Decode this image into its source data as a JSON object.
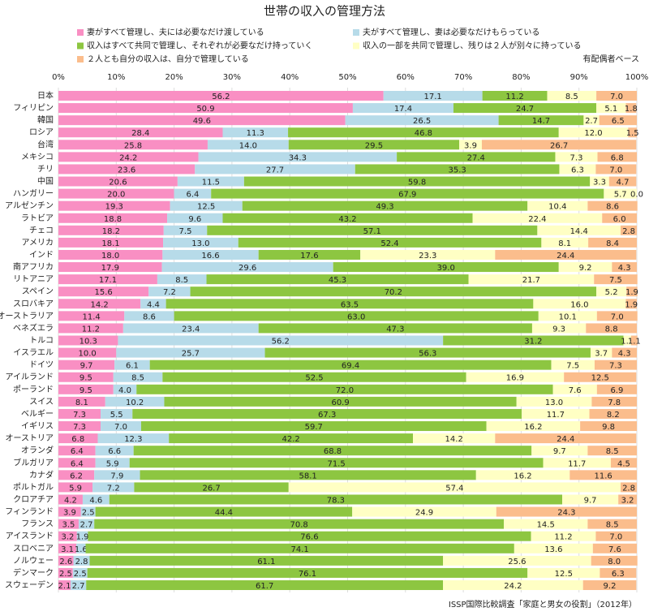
{
  "chart_data": {
    "type": "stacked-bar-horizontal",
    "title": "世帯の収入の管理方法",
    "note": "有配偶者ベース",
    "source": "ISSP国際比較調査「家庭と男女の役割」（2012年）",
    "xlim": [
      0,
      100
    ],
    "xticks": [
      {
        "value": 0,
        "label": "0%"
      },
      {
        "value": 10,
        "label": "10%"
      },
      {
        "value": 20,
        "label": "20%"
      },
      {
        "value": 30,
        "label": "30%"
      },
      {
        "value": 40,
        "label": "40%"
      },
      {
        "value": 50,
        "label": "50%"
      },
      {
        "value": 60,
        "label": "60%"
      },
      {
        "value": 70,
        "label": "70%"
      },
      {
        "value": 80,
        "label": "80%"
      },
      {
        "value": 90,
        "label": "90%"
      },
      {
        "value": 100,
        "label": "100%"
      }
    ],
    "grid": true,
    "categories": [
      "日本",
      "フィリピン",
      "韓国",
      "ロシア",
      "台湾",
      "メキシコ",
      "チリ",
      "中国",
      "ハンガリー",
      "アルゼンチン",
      "ラトビア",
      "チェコ",
      "アメリカ",
      "インド",
      "南アフリカ",
      "リトアニア",
      "スペイン",
      "スロバキア",
      "オーストラリア",
      "ベネズエラ",
      "トルコ",
      "イスラエル",
      "ドイツ",
      "アイルランド",
      "ポーランド",
      "スイス",
      "ベルギー",
      "イギリス",
      "オーストリア",
      "オランダ",
      "ブルガリア",
      "カナダ",
      "ポルトガル",
      "クロアチア",
      "フィンランド",
      "フランス",
      "アイスランド",
      "スロベニア",
      "ノルウェー",
      "デンマーク",
      "スウェーデン"
    ],
    "series": [
      {
        "name": "妻がすべて管理し、夫には必要なだけ渡している",
        "color": "#f98fc3",
        "values": [
          56.2,
          50.9,
          49.6,
          28.4,
          25.8,
          24.2,
          23.6,
          20.6,
          20.0,
          19.3,
          18.8,
          18.2,
          18.1,
          18.0,
          17.9,
          17.1,
          15.6,
          14.2,
          11.4,
          11.2,
          10.3,
          10.0,
          9.7,
          9.5,
          9.5,
          8.1,
          7.3,
          7.3,
          6.8,
          6.4,
          6.4,
          6.2,
          5.9,
          4.2,
          3.9,
          3.5,
          3.2,
          3.1,
          2.6,
          2.5,
          2.1
        ],
        "value_labels": [
          "56.2",
          "50.9",
          "49.6",
          "28.4",
          "25.8",
          "24.2",
          "23.6",
          "20.6",
          "20.0",
          "19.3",
          "18.8",
          "18.2",
          "18.1",
          "18.0",
          "17.9",
          "17.1",
          "15.6",
          "14.2",
          "11.4",
          "11.2",
          "10.3",
          "10.0",
          "9.7",
          "9.5",
          "9.5",
          "8.1",
          "7.3",
          "7.3",
          "6.8",
          "6.4",
          "6.4",
          "6.2",
          "5.9",
          "4.2",
          "3.9",
          "3.5",
          "3.2",
          "3.1",
          "2.6",
          "2.5",
          "2.1"
        ]
      },
      {
        "name": "夫がすべて管理し、妻は必要なだけもらっている",
        "color": "#b7dbe9",
        "values": [
          17.1,
          17.4,
          26.5,
          11.3,
          14.0,
          34.3,
          27.7,
          11.5,
          6.4,
          12.5,
          9.6,
          7.5,
          13.0,
          16.6,
          29.6,
          8.5,
          7.2,
          4.4,
          8.6,
          23.4,
          56.2,
          25.7,
          6.1,
          8.5,
          4.0,
          10.2,
          5.5,
          7.0,
          12.3,
          6.6,
          5.9,
          7.9,
          7.2,
          4.6,
          2.5,
          2.7,
          1.9,
          1.6,
          2.8,
          2.5,
          2.7
        ],
        "value_labels": [
          "17.1",
          "17.4",
          "26.5",
          "11.3",
          "14.0",
          "34.3",
          "27.7",
          "11.5",
          "6.4",
          "12.5",
          "9.6",
          "7.5",
          "13.0",
          "16.6",
          "29.6",
          "8.5",
          "7.2",
          "4.4",
          "8.6",
          "23.4",
          "56.2",
          "25.7",
          "6.1",
          "8.5",
          "4.0",
          "10.2",
          "5.5",
          "7.0",
          "12.3",
          "6.6",
          "5.9",
          "7.9",
          "7.2",
          "4.6",
          "2.5",
          "2.7",
          "1.9",
          "1.6",
          "2.8",
          "2.5",
          "2.7"
        ]
      },
      {
        "name": "収入はすべて共同で管理し、それぞれが必要なだけ持っていく",
        "color": "#8dc641",
        "values": [
          11.2,
          24.7,
          14.7,
          46.8,
          29.5,
          27.4,
          35.3,
          59.8,
          67.9,
          49.3,
          43.2,
          57.1,
          52.4,
          17.6,
          39.0,
          45.3,
          70.2,
          63.5,
          63.0,
          47.3,
          31.2,
          56.3,
          69.4,
          52.5,
          72.0,
          60.9,
          67.3,
          59.7,
          42.2,
          68.8,
          71.5,
          58.1,
          26.7,
          78.3,
          44.4,
          70.8,
          76.6,
          74.1,
          61.1,
          76.1,
          61.7
        ],
        "value_labels": [
          "11.2",
          "24.7",
          "14.7",
          "46.8",
          "29.5",
          "27.4",
          "35.3",
          "59.8",
          "67.9",
          "49.3",
          "43.2",
          "57.1",
          "52.4",
          "17.6",
          "39.0",
          "45.3",
          "70.2",
          "63.5",
          "63.0",
          "47.3",
          "31.2",
          "56.3",
          "69.4",
          "52.5",
          "72.0",
          "60.9",
          "67.3",
          "59.7",
          "42.2",
          "68.8",
          "71.5",
          "58.1",
          "26.7",
          "78.3",
          "44.4",
          "70.8",
          "76.6",
          "74.1",
          "61.1",
          "76.1",
          "61.7"
        ]
      },
      {
        "name": "収入の一部を共同で管理し、残りは２人が別々に持っている",
        "color": "#ffffc4",
        "values": [
          8.5,
          5.1,
          2.7,
          12.0,
          3.9,
          7.3,
          6.3,
          3.3,
          5.7,
          10.4,
          22.4,
          14.4,
          8.1,
          23.3,
          9.2,
          21.7,
          5.2,
          16.0,
          10.1,
          9.3,
          1.3,
          3.7,
          7.5,
          16.9,
          7.6,
          13.0,
          11.7,
          16.2,
          14.2,
          9.7,
          11.7,
          16.2,
          57.4,
          9.7,
          24.9,
          14.5,
          11.2,
          13.6,
          25.6,
          12.5,
          24.2
        ],
        "value_labels": [
          "8.5",
          "5.1",
          "2.7",
          "12.0",
          "3.9",
          "7.3",
          "6.3",
          "3.3",
          "5.7",
          "10.4",
          "22.4",
          "14.4",
          "8.1",
          "23.3",
          "9.2",
          "21.7",
          "5.2",
          "16.0",
          "10.1",
          "9.3",
          "1.3",
          "3.7",
          "7.5",
          "16.9",
          "7.6",
          "13.0",
          "11.7",
          "16.2",
          "14.2",
          "9.7",
          "11.7",
          "16.2",
          "57.4",
          "9.7",
          "24.9",
          "14.5",
          "11.2",
          "13.6",
          "25.6",
          "12.5",
          "24.2"
        ]
      },
      {
        "name": "２人とも自分の収入は、自分で管理している",
        "color": "#fbbd8c",
        "values": [
          7.0,
          1.8,
          6.5,
          1.5,
          26.7,
          6.8,
          7.0,
          4.7,
          0.0,
          8.6,
          6.0,
          2.8,
          8.4,
          24.4,
          4.3,
          7.5,
          1.9,
          1.9,
          7.0,
          8.8,
          1.1,
          4.3,
          7.3,
          12.5,
          6.9,
          7.8,
          8.2,
          9.8,
          24.4,
          8.5,
          4.5,
          11.6,
          2.8,
          3.2,
          24.3,
          8.5,
          7.0,
          7.6,
          8.0,
          6.3,
          9.2
        ],
        "value_labels": [
          "7.0",
          "1.8",
          "6.5",
          "1.5",
          "26.7",
          "6.8",
          "7.0",
          "4.7",
          "0.0",
          "8.6",
          "6.0",
          "2.8",
          "8.4",
          "24.4",
          "4.3",
          "7.5",
          "1.9",
          "1.9",
          "7.0",
          "8.8",
          "1.1",
          "4.3",
          "7.3",
          "12.5",
          "6.9",
          "7.8",
          "8.2",
          "9.8",
          "24.4",
          "8.5",
          "4.5",
          "11.6",
          "2.8",
          "3.2",
          "24.3",
          "8.5",
          "7.0",
          "7.6",
          "8.0",
          "6.3",
          "9.2"
        ]
      }
    ]
  }
}
